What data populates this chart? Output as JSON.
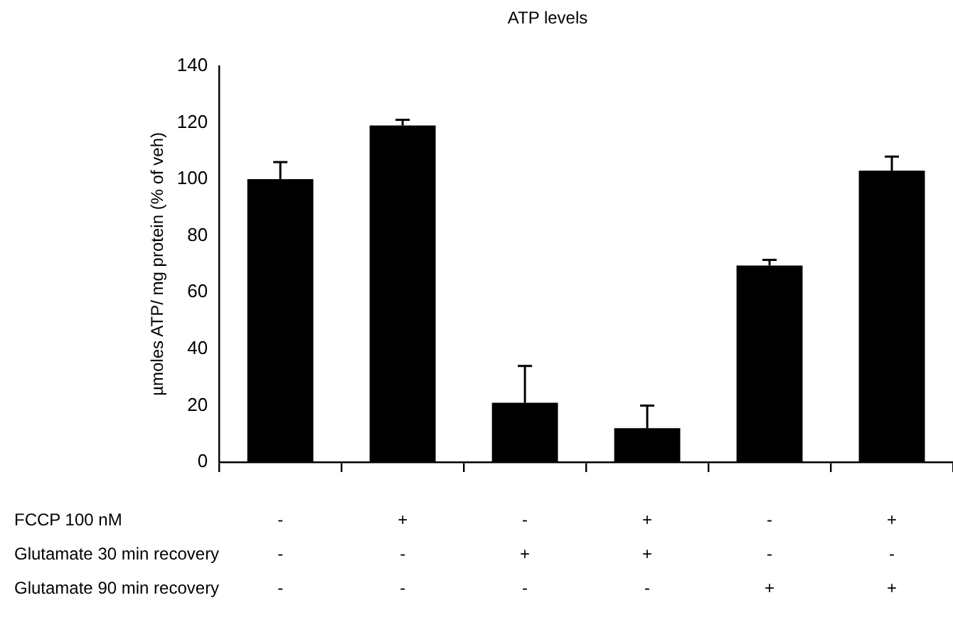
{
  "chart_data": {
    "type": "bar",
    "title": "ATP levels",
    "ylabel": "µmoles ATP/ mg protein (% of veh)",
    "categories": [
      "-\n-\n-",
      "+\n-\n-",
      "-\n+\n-",
      "+\n+\n-",
      "-\n-\n+",
      "+\n-\n+"
    ],
    "values": [
      100,
      119,
      21,
      12,
      69.5,
      103
    ],
    "color": "#000000",
    "errors": [
      [
        100,
        106
      ],
      [
        119,
        121
      ],
      [
        21,
        34
      ],
      [
        12,
        20
      ],
      [
        69.5,
        71.5
      ],
      [
        103,
        108
      ]
    ],
    "ylim": [
      0,
      140
    ],
    "yticks": [
      0,
      20,
      40,
      60,
      80,
      100,
      120,
      140
    ],
    "grid": false,
    "legend": false,
    "annotations": [
      "FCCP 100 nM",
      "Glutamate 30 min recovery",
      "Glutamate 90 min recovery"
    ]
  }
}
